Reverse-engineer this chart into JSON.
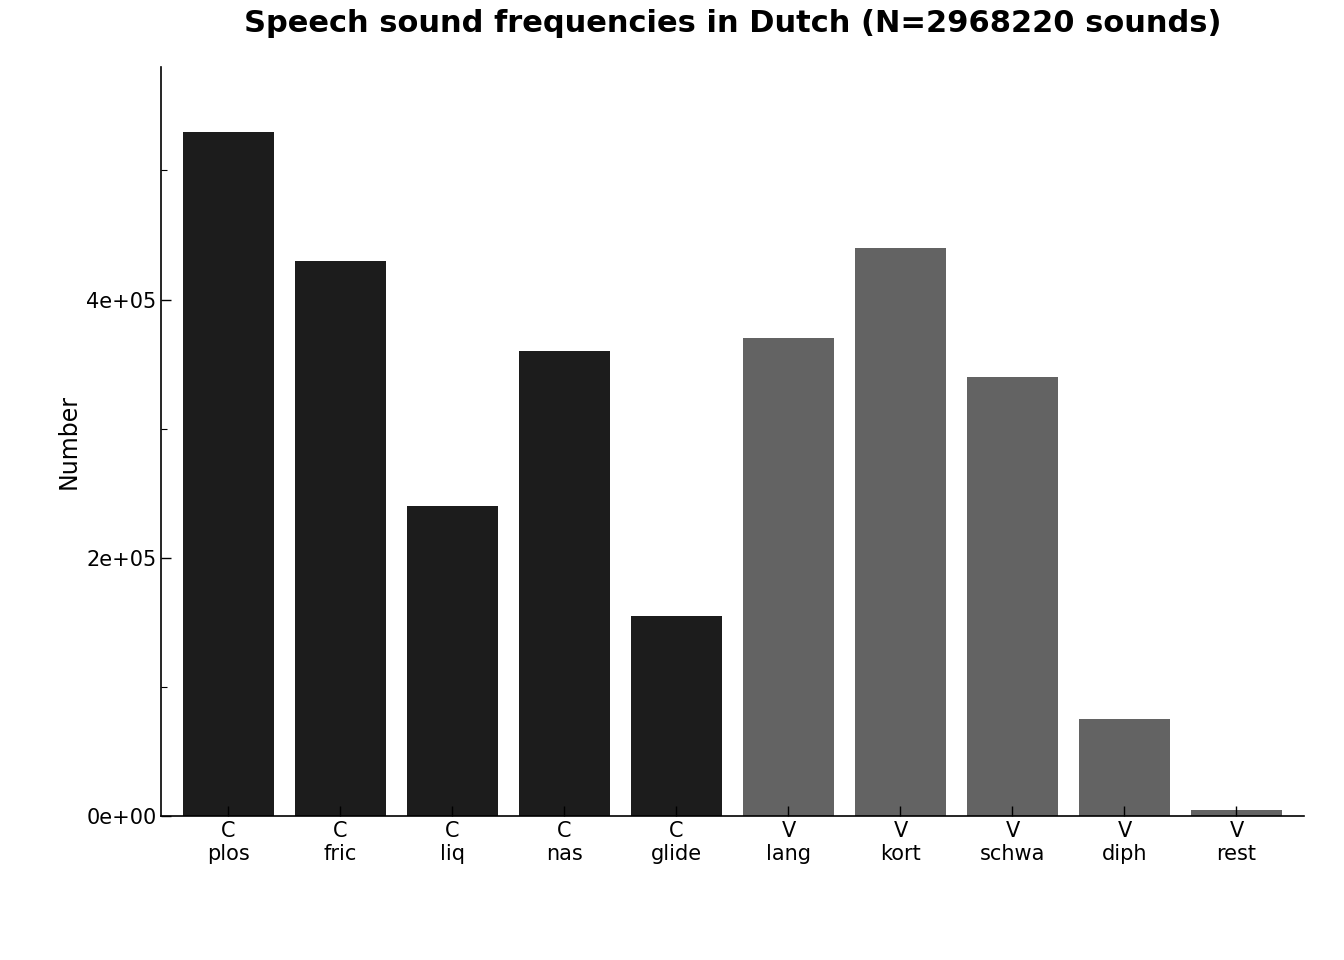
{
  "title": "Speech sound frequencies in Dutch (N=2968220 sounds)",
  "ylabel": "Number",
  "categories": [
    "C\nplos",
    "C\nfric",
    "C\nliq",
    "C\nnas",
    "C\nglide",
    "V\nlang",
    "V\nkort",
    "V\nschwa",
    "V\ndiph",
    "V\nrest"
  ],
  "values": [
    530000,
    430000,
    240000,
    360000,
    155000,
    370000,
    440000,
    340000,
    75000,
    5000
  ],
  "colors": [
    "#1c1c1c",
    "#1c1c1c",
    "#1c1c1c",
    "#1c1c1c",
    "#1c1c1c",
    "#636363",
    "#636363",
    "#636363",
    "#636363",
    "#636363"
  ],
  "ylim": [
    0,
    580000
  ],
  "yticks": [
    0,
    200000,
    400000
  ],
  "ytick_labels": [
    "0e+00",
    "2e+05",
    "4e+05"
  ],
  "background_color": "#ffffff",
  "title_fontsize": 22,
  "label_fontsize": 17,
  "tick_fontsize": 15,
  "bar_width": 0.82
}
